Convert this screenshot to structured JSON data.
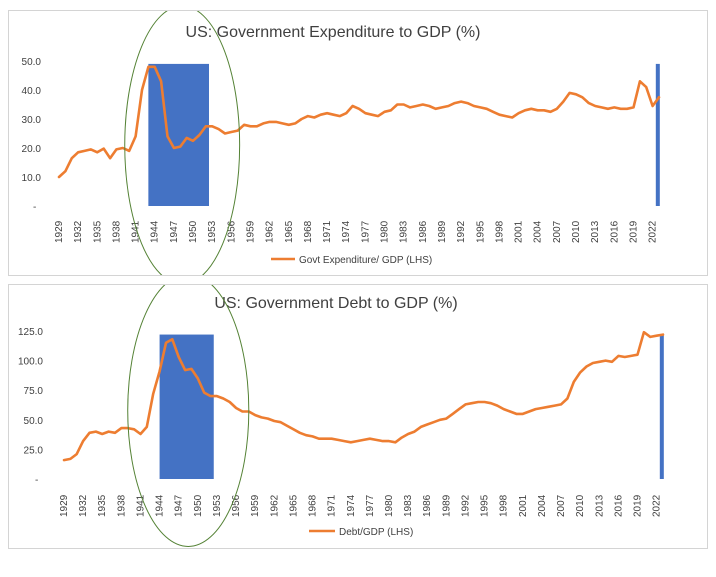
{
  "colors": {
    "line": "#ED7D31",
    "bar": "#4472C4",
    "ellipse": "#548235",
    "text": "#404040"
  },
  "chart_data": [
    {
      "type": "line",
      "title": "US: Government  Expenditure to GDP (%)",
      "legend": "Govt Expenditure/ GDP (LHS)",
      "legend_position": "bottom",
      "yticks": [
        "-",
        "10.0",
        "20.0",
        "30.0",
        "40.0",
        "50.0"
      ],
      "ylim": [
        0,
        50
      ],
      "xlim": [
        1929,
        2023
      ],
      "xticks": [
        1929,
        1932,
        1935,
        1938,
        1941,
        1944,
        1947,
        1950,
        1953,
        1956,
        1959,
        1962,
        1965,
        1968,
        1971,
        1974,
        1977,
        1980,
        1983,
        1986,
        1989,
        1992,
        1995,
        1998,
        2001,
        2004,
        2007,
        2010,
        2013,
        2016,
        2019,
        2022
      ],
      "shaded_ranges": [
        {
          "from": 1943,
          "to": 1952.5,
          "top": 49
        },
        {
          "from": 2022.5,
          "to": 2023,
          "top": 49
        }
      ],
      "highlight_ellipse": {
        "x_center": 1948.3,
        "x_halfwidth": 9,
        "y_center": 21,
        "y_halfheight": 48
      },
      "series": [
        {
          "x": [
            1929,
            1930,
            1931,
            1932,
            1933,
            1934,
            1935,
            1936,
            1937,
            1938,
            1939,
            1940,
            1941,
            1942,
            1943,
            1944,
            1945,
            1946,
            1947,
            1948,
            1949,
            1950,
            1951,
            1952,
            1953,
            1954,
            1955,
            1956,
            1957,
            1958,
            1959,
            1960,
            1961,
            1962,
            1963,
            1964,
            1965,
            1966,
            1967,
            1968,
            1969,
            1970,
            1971,
            1972,
            1973,
            1974,
            1975,
            1976,
            1977,
            1978,
            1979,
            1980,
            1981,
            1982,
            1983,
            1984,
            1985,
            1986,
            1987,
            1988,
            1989,
            1990,
            1991,
            1992,
            1993,
            1994,
            1995,
            1996,
            1997,
            1998,
            1999,
            2000,
            2001,
            2002,
            2003,
            2004,
            2005,
            2006,
            2007,
            2008,
            2009,
            2010,
            2011,
            2012,
            2013,
            2014,
            2015,
            2016,
            2017,
            2018,
            2019,
            2020,
            2021,
            2022,
            2023
          ],
          "values": [
            10,
            12,
            16.5,
            18.5,
            19,
            19.5,
            18.5,
            19.8,
            16.5,
            19.5,
            20,
            19,
            24,
            40,
            48,
            48,
            43,
            24,
            20,
            20.5,
            23.5,
            22.5,
            24.5,
            27.5,
            27.5,
            26.5,
            25,
            25.5,
            26,
            28,
            27.5,
            27.5,
            28.5,
            29,
            29,
            28.5,
            28,
            28.5,
            30,
            31,
            30.5,
            31.5,
            32,
            31.5,
            31,
            32,
            34.5,
            33.5,
            32,
            31.5,
            31,
            32.5,
            33,
            35,
            35,
            34,
            34.5,
            35,
            34.5,
            33.5,
            34,
            34.5,
            35.5,
            36,
            35.5,
            34.5,
            34,
            33.5,
            32.5,
            31.5,
            31,
            30.5,
            32,
            33,
            33.5,
            33,
            33,
            32.5,
            33.5,
            36,
            39,
            38.5,
            37.5,
            35.5,
            34.5,
            34,
            33.5,
            34,
            33.5,
            33.5,
            34,
            43,
            41,
            34.5,
            37.5
          ]
        }
      ]
    },
    {
      "type": "line",
      "title": "US: Government  Debt to GDP (%)",
      "legend": "Debt/GDP (LHS)",
      "legend_position": "bottom",
      "yticks": [
        "-",
        "25.0",
        "50.0",
        "75.0",
        "100.0",
        "125.0"
      ],
      "ylim": [
        0,
        125
      ],
      "xlim": [
        1929,
        2023
      ],
      "xticks": [
        1929,
        1932,
        1935,
        1938,
        1941,
        1944,
        1947,
        1950,
        1953,
        1956,
        1959,
        1962,
        1965,
        1968,
        1971,
        1974,
        1977,
        1980,
        1983,
        1986,
        1989,
        1992,
        1995,
        1998,
        2001,
        2004,
        2007,
        2010,
        2013,
        2016,
        2019,
        2022
      ],
      "shaded_ranges": [
        {
          "from": 1944,
          "to": 1952.5,
          "top": 122
        },
        {
          "from": 2022.5,
          "to": 2023,
          "top": 122
        }
      ],
      "highlight_ellipse": {
        "x_center": 1948.5,
        "x_halfwidth": 9.5,
        "y_center": 58,
        "y_halfheight": 115
      },
      "series": [
        {
          "x": [
            1929,
            1930,
            1931,
            1932,
            1933,
            1934,
            1935,
            1936,
            1937,
            1938,
            1939,
            1940,
            1941,
            1942,
            1943,
            1944,
            1945,
            1946,
            1947,
            1948,
            1949,
            1950,
            1951,
            1952,
            1953,
            1954,
            1955,
            1956,
            1957,
            1958,
            1959,
            1960,
            1961,
            1962,
            1963,
            1964,
            1965,
            1966,
            1967,
            1968,
            1969,
            1970,
            1971,
            1972,
            1973,
            1974,
            1975,
            1976,
            1977,
            1978,
            1979,
            1980,
            1981,
            1982,
            1983,
            1984,
            1985,
            1986,
            1987,
            1988,
            1989,
            1990,
            1991,
            1992,
            1993,
            1994,
            1995,
            1996,
            1997,
            1998,
            1999,
            2000,
            2001,
            2002,
            2003,
            2004,
            2005,
            2006,
            2007,
            2008,
            2009,
            2010,
            2011,
            2012,
            2013,
            2014,
            2015,
            2016,
            2017,
            2018,
            2019,
            2020,
            2021,
            2022,
            2023
          ],
          "values": [
            16,
            17,
            21,
            32,
            39,
            40,
            38,
            40,
            39,
            43,
            43,
            42,
            38,
            44,
            72,
            91,
            115,
            118,
            103,
            92,
            93,
            85,
            73,
            70,
            70,
            68,
            65,
            60,
            57,
            57,
            54,
            52,
            51,
            49,
            48,
            45,
            42,
            39,
            37,
            36,
            34,
            34,
            34,
            33,
            32,
            31,
            32,
            33,
            34,
            33,
            32,
            32,
            31,
            35,
            38,
            40,
            44,
            46,
            48,
            50,
            51,
            55,
            59,
            63,
            64,
            65,
            65,
            64,
            62,
            59,
            57,
            55,
            55,
            57,
            59,
            60,
            61,
            62,
            63,
            68,
            82,
            90,
            95,
            98,
            99,
            100,
            99,
            104,
            103,
            104,
            105,
            124,
            120,
            121,
            122
          ]
        }
      ]
    }
  ]
}
